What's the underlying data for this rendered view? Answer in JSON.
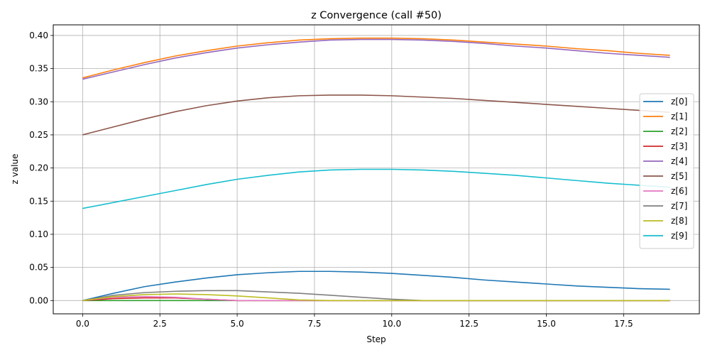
{
  "chart_data": {
    "type": "line",
    "title": "z Convergence (call #50)",
    "xlabel": "Step",
    "ylabel": "z value",
    "xlim": [
      -0.95,
      19.95
    ],
    "ylim": [
      -0.02,
      0.416
    ],
    "xticks": [
      0.0,
      2.5,
      5.0,
      7.5,
      10.0,
      12.5,
      15.0,
      17.5
    ],
    "xtick_labels": [
      "0.0",
      "2.5",
      "5.0",
      "7.5",
      "10.0",
      "12.5",
      "15.0",
      "17.5"
    ],
    "yticks": [
      0.0,
      0.05,
      0.1,
      0.15,
      0.2,
      0.25,
      0.3,
      0.35,
      0.4
    ],
    "ytick_labels": [
      "0.00",
      "0.05",
      "0.10",
      "0.15",
      "0.20",
      "0.25",
      "0.30",
      "0.35",
      "0.40"
    ],
    "grid": true,
    "legend_position": "center-right",
    "x": [
      0,
      1,
      2,
      3,
      4,
      5,
      6,
      7,
      8,
      9,
      10,
      11,
      12,
      13,
      14,
      15,
      16,
      17,
      18,
      19
    ],
    "series": [
      {
        "name": "z[0]",
        "color": "#1f77b4",
        "values": [
          0.0,
          0.011,
          0.021,
          0.028,
          0.034,
          0.039,
          0.042,
          0.044,
          0.044,
          0.043,
          0.041,
          0.038,
          0.035,
          0.031,
          0.028,
          0.025,
          0.022,
          0.02,
          0.018,
          0.017
        ]
      },
      {
        "name": "z[1]",
        "color": "#ff7f0e",
        "values": [
          0.336,
          0.348,
          0.359,
          0.369,
          0.377,
          0.384,
          0.389,
          0.393,
          0.395,
          0.396,
          0.396,
          0.395,
          0.393,
          0.39,
          0.387,
          0.384,
          0.38,
          0.377,
          0.373,
          0.37
        ]
      },
      {
        "name": "z[2]",
        "color": "#2ca02c",
        "values": [
          0,
          0,
          0,
          0,
          0,
          0,
          0,
          0,
          0,
          0,
          0,
          0,
          0,
          0,
          0,
          0,
          0,
          0,
          0,
          0
        ]
      },
      {
        "name": "z[3]",
        "color": "#d62728",
        "values": [
          0.0,
          0.003,
          0.004,
          0.004,
          0.002,
          0.0,
          0,
          0,
          0,
          0,
          0,
          0,
          0,
          0,
          0,
          0,
          0,
          0,
          0,
          0
        ]
      },
      {
        "name": "z[4]",
        "color": "#9467bd",
        "values": [
          0.334,
          0.345,
          0.356,
          0.366,
          0.374,
          0.381,
          0.386,
          0.39,
          0.393,
          0.394,
          0.394,
          0.393,
          0.391,
          0.388,
          0.384,
          0.381,
          0.377,
          0.373,
          0.37,
          0.367
        ]
      },
      {
        "name": "z[5]",
        "color": "#8c564b",
        "values": [
          0.25,
          0.262,
          0.274,
          0.285,
          0.294,
          0.301,
          0.306,
          0.309,
          0.31,
          0.31,
          0.309,
          0.307,
          0.305,
          0.302,
          0.299,
          0.296,
          0.293,
          0.29,
          0.287,
          0.284
        ]
      },
      {
        "name": "z[6]",
        "color": "#e377c2",
        "values": [
          0.0,
          0.005,
          0.006,
          0.005,
          0.002,
          0.0,
          0,
          0,
          0,
          0,
          0,
          0,
          0,
          0,
          0,
          0,
          0,
          0,
          0,
          0
        ]
      },
      {
        "name": "z[7]",
        "color": "#7f7f7f",
        "values": [
          0.0,
          0.008,
          0.012,
          0.014,
          0.015,
          0.015,
          0.013,
          0.011,
          0.008,
          0.005,
          0.002,
          0.0,
          0,
          0,
          0,
          0,
          0,
          0,
          0,
          0
        ]
      },
      {
        "name": "z[8]",
        "color": "#bcbd22",
        "values": [
          0.0,
          0.006,
          0.009,
          0.01,
          0.009,
          0.007,
          0.004,
          0.001,
          0.0,
          0,
          0,
          0,
          0,
          0,
          0,
          0,
          0,
          0,
          0,
          0
        ]
      },
      {
        "name": "z[9]",
        "color": "#17becf",
        "values": [
          0.139,
          0.148,
          0.157,
          0.166,
          0.175,
          0.183,
          0.189,
          0.194,
          0.197,
          0.198,
          0.198,
          0.197,
          0.195,
          0.192,
          0.189,
          0.185,
          0.181,
          0.177,
          0.174,
          0.171
        ]
      }
    ]
  }
}
